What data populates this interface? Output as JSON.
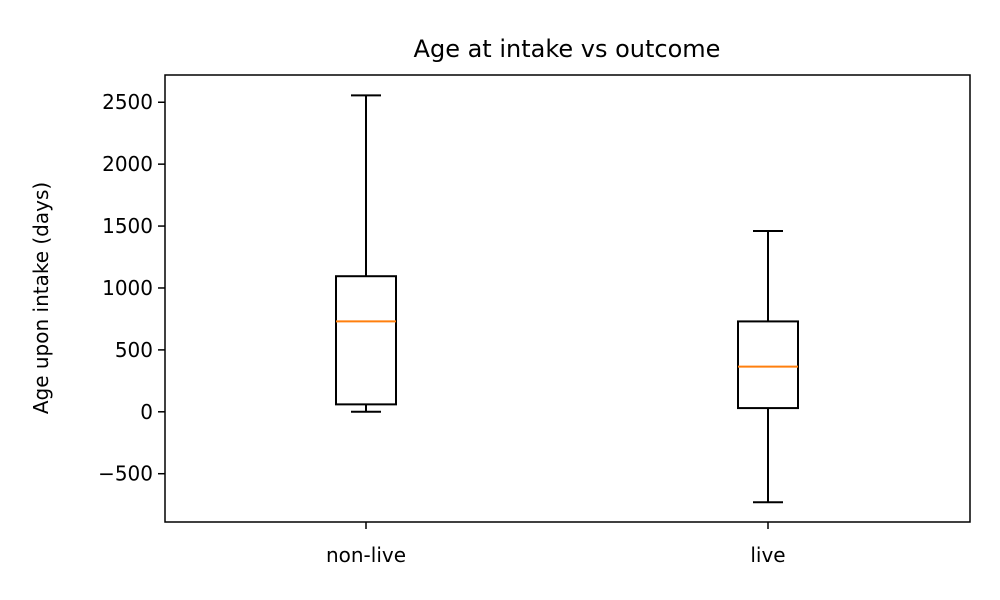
{
  "chart_data": {
    "type": "box",
    "title": "Age at intake vs outcome",
    "xlabel": "",
    "ylabel": "Age upon intake (days)",
    "categories": [
      "non-live",
      "live"
    ],
    "boxes": [
      {
        "category": "non-live",
        "whisker_low": 0,
        "q1": 60,
        "median": 730,
        "q3": 1095,
        "whisker_high": 2555
      },
      {
        "category": "live",
        "whisker_low": -730,
        "q1": 30,
        "median": 365,
        "q3": 730,
        "whisker_high": 1460
      }
    ],
    "yticks": [
      -500,
      0,
      500,
      1000,
      1500,
      2000,
      2500
    ],
    "ytick_labels": [
      "−500",
      "0",
      "500",
      "1000",
      "1500",
      "2000",
      "2500"
    ],
    "ylim": [
      -890,
      2720
    ],
    "grid": false,
    "colors": {
      "box": "#000000",
      "median": "#ff7f0e"
    }
  }
}
